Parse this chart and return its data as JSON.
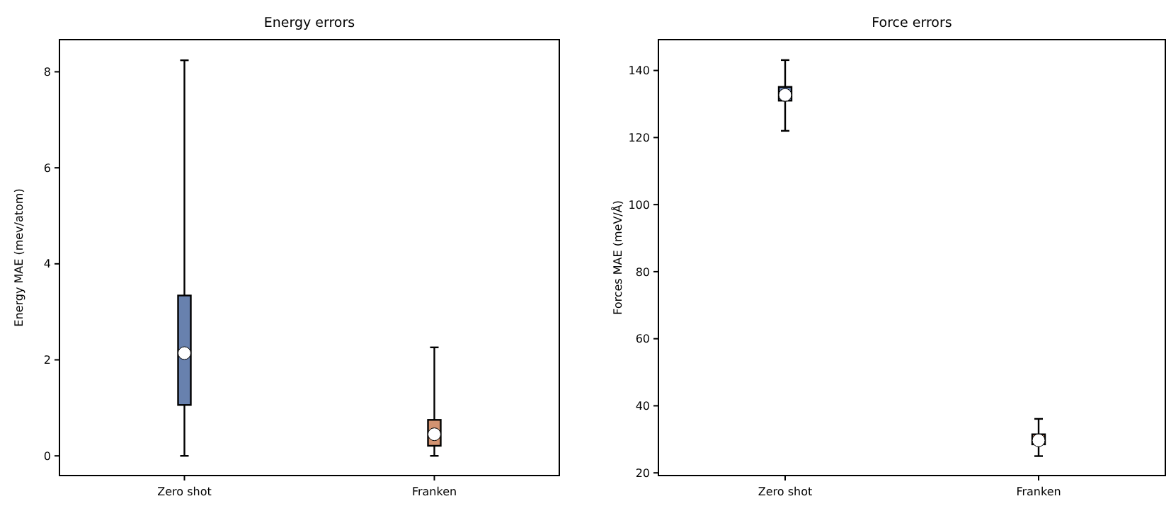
{
  "chart_data": [
    {
      "type": "box",
      "title": "Energy errors",
      "ylabel": "Energy MAE (mev/atom)",
      "categories": [
        "Zero shot",
        "Franken"
      ],
      "colors": [
        "#6881ae",
        "#d39371"
      ],
      "boxes": [
        {
          "low": 0,
          "q1": 1.06,
          "median": 2.14,
          "q3": 3.34,
          "high": 8.24
        },
        {
          "low": 0,
          "q1": 0.21,
          "median": 0.45,
          "q3": 0.75,
          "high": 2.26
        }
      ],
      "ylim": [
        -0.41,
        8.67
      ],
      "yticks": [
        0,
        2,
        4,
        6,
        8
      ],
      "grid": false
    },
    {
      "type": "box",
      "title": "Force errors",
      "ylabel": "Forces MAE (meV/Å)",
      "categories": [
        "Zero shot",
        "Franken"
      ],
      "colors": [
        "#6881ae",
        "#d39371"
      ],
      "boxes": [
        {
          "low": 122,
          "q1": 131,
          "median": 132.7,
          "q3": 135.1,
          "high": 143.1
        },
        {
          "low": 25,
          "q1": 28.5,
          "median": 29.7,
          "q3": 31.5,
          "high": 36.1
        }
      ],
      "ylim": [
        19.2,
        149.2
      ],
      "yticks": [
        20,
        40,
        60,
        80,
        100,
        120,
        140
      ],
      "grid": false
    }
  ]
}
